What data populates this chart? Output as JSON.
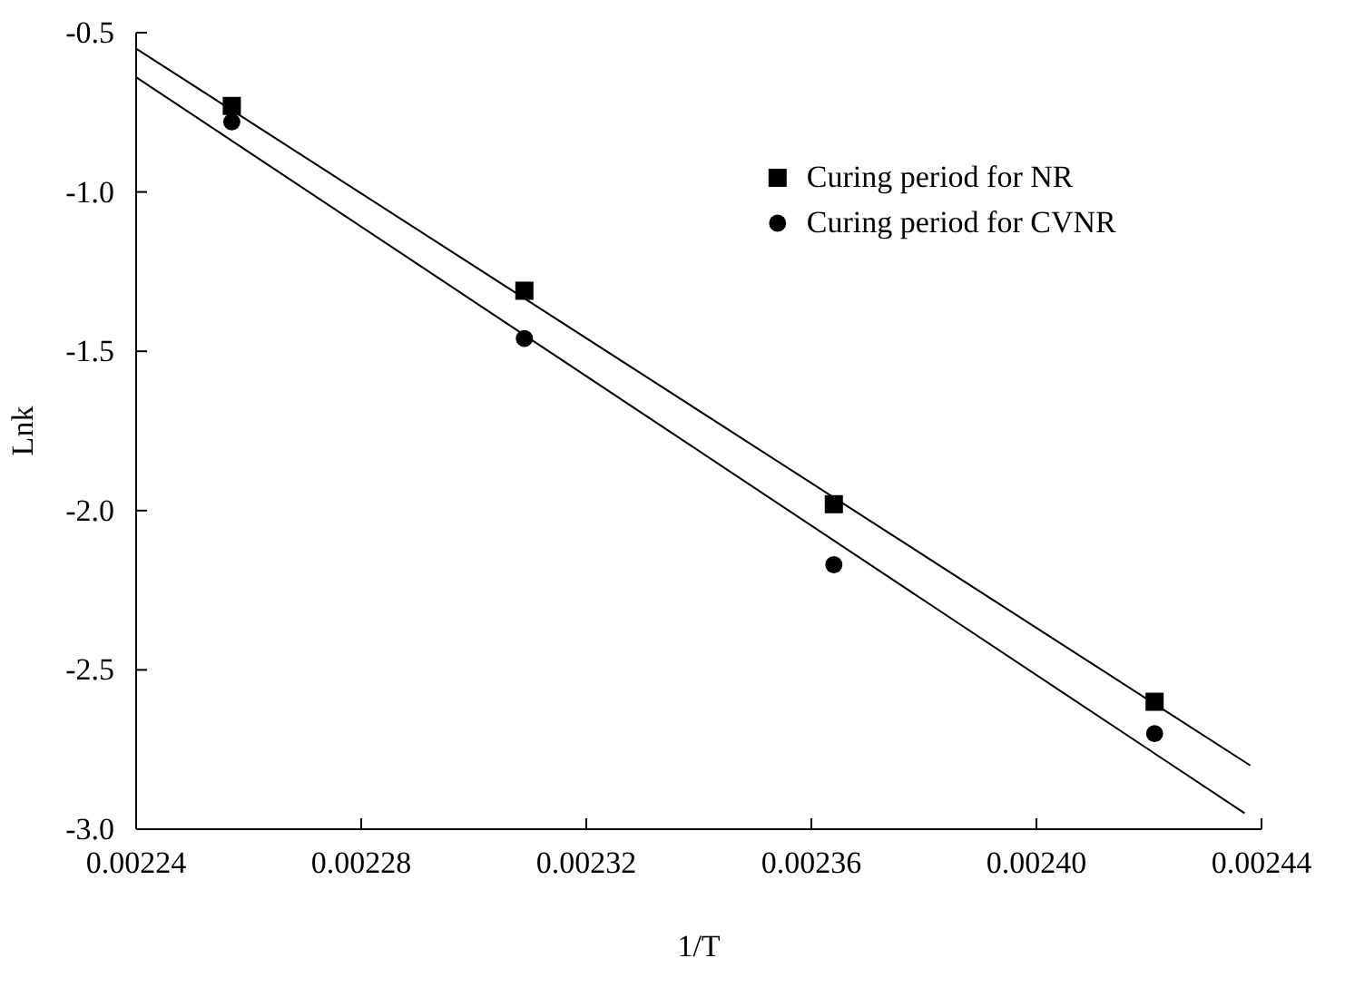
{
  "chart_data": {
    "type": "scatter",
    "xlabel": "1/T",
    "ylabel": "Lnk",
    "xlim": [
      0.00224,
      0.00244
    ],
    "xticks": [
      0.00224,
      0.00228,
      0.00232,
      0.00236,
      {
        "value": 0.0024,
        "label": "0.00240"
      },
      {
        "value": 0.00244,
        "label": "0.00244"
      }
    ],
    "ylim": [
      -3.0,
      -0.5
    ],
    "yticks": [
      {
        "value": -3.0,
        "label": "-3.0"
      },
      {
        "value": -2.5,
        "label": "-2.5"
      },
      {
        "value": -2.0,
        "label": "-2.0"
      },
      {
        "value": -1.5,
        "label": "-1.5"
      },
      {
        "value": -1.0,
        "label": "-1.0"
      },
      {
        "value": -0.5,
        "label": "-0.5"
      }
    ],
    "grid": false,
    "legend": "top right",
    "series": [
      {
        "name": "Curing period for NR",
        "marker": "square",
        "color": "#000000",
        "x": [
          0.002257,
          0.002309,
          0.002364,
          0.002421
        ],
        "values": [
          -0.73,
          -1.31,
          -1.98,
          -2.6
        ]
      },
      {
        "name": "Curing period for CVNR",
        "marker": "circle",
        "color": "#000000",
        "x": [
          0.002257,
          0.002309,
          0.002364,
          0.002421
        ],
        "values": [
          -0.78,
          -1.46,
          -2.17,
          -2.7
        ]
      },
      {
        "type": "line",
        "marker": "none",
        "color": "#000000",
        "x": [
          0.00224,
          0.002438
        ],
        "values": [
          -0.55,
          -2.8
        ]
      },
      {
        "type": "line",
        "marker": "none",
        "color": "#000000",
        "x": [
          0.00224,
          0.002437
        ],
        "values": [
          -0.64,
          -2.95
        ]
      }
    ]
  }
}
